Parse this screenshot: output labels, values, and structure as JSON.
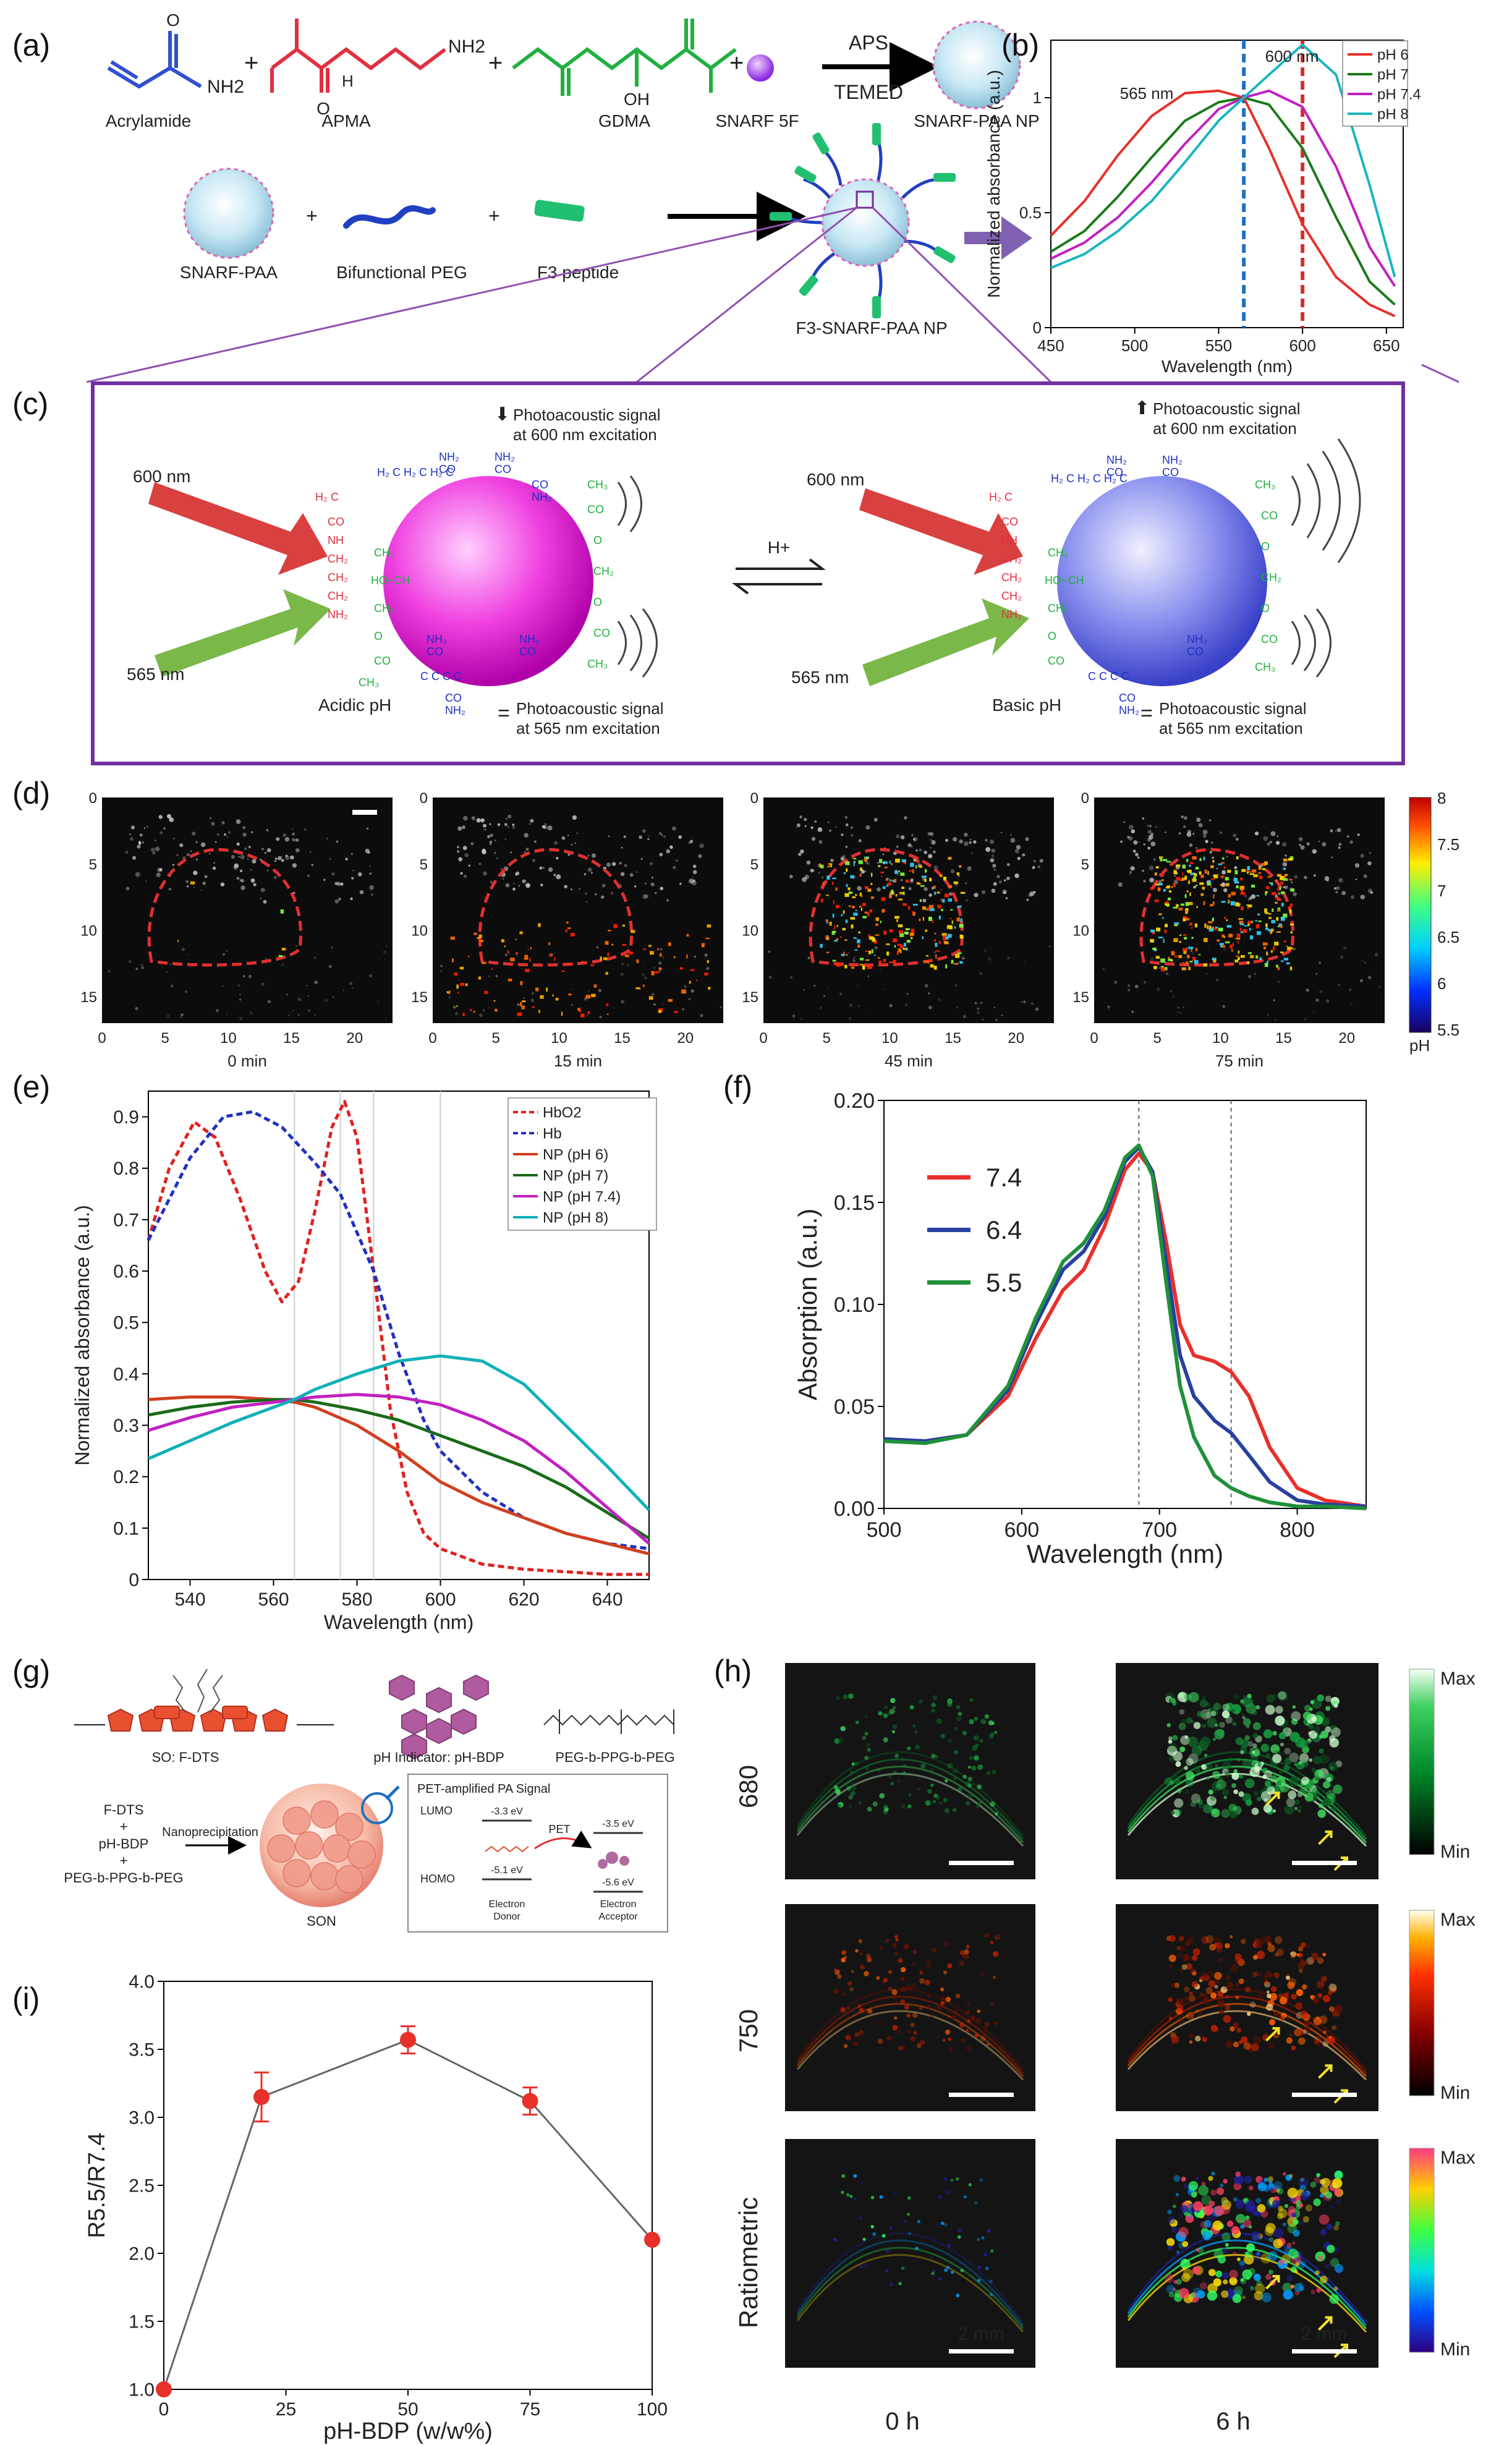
{
  "panels": {
    "a": {
      "label": "(a)",
      "reagents": [
        "Acrylamide",
        "APMA",
        "GDMA",
        "SNARF 5F"
      ],
      "plus": "+",
      "nh2": "NH2",
      "nh": "H",
      "oh": "OH",
      "o": "O",
      "conditions_top": "APS",
      "conditions_bottom": "TEMED",
      "product": "SNARF-PAA NP",
      "row2": [
        "SNARF-PAA",
        "Bifunctional PEG",
        "F3 peptide"
      ],
      "product2": "F3-SNARF-PAA NP"
    },
    "b": {
      "label": "(b)",
      "marker1": "565 nm",
      "marker2": "600 nm"
    },
    "c": {
      "label": "(c)",
      "left_top_arrow": "⬇",
      "left_top_line1": "Photoacoustic signal",
      "left_top_line2": "at 600 nm excitation",
      "left_bottom_eq": "=",
      "left_bottom_line1": "Photoacoustic signal",
      "left_bottom_line2": "at 565 nm excitation",
      "right_top_arrow": "⬆",
      "right_top_line1": "Photoacoustic signal",
      "right_top_line2": "at 600 nm excitation",
      "right_bottom_eq": "=",
      "right_bottom_line1": "Photoacoustic signal",
      "right_bottom_line2": "at 565 nm excitation",
      "laser_red": "600 nm",
      "laser_green": "565 nm",
      "left_state": "Acidic pH",
      "right_state": "Basic pH",
      "equilibrium": "H+"
    },
    "d": {
      "label": "(d)",
      "times": [
        "0 min",
        "15 min",
        "45 min",
        "75 min"
      ],
      "yticks": [
        "0",
        "5",
        "10",
        "15"
      ],
      "xticks": [
        "0",
        "5",
        "10",
        "15",
        "20"
      ],
      "colorbar_ticks": [
        "8",
        "7.5",
        "7",
        "6.5",
        "6",
        "5.5"
      ],
      "colorbar_unit": "pH"
    },
    "e": {
      "label": "(e)",
      "markers": [
        "565 nm",
        "576 nm",
        "584 nm",
        "600 nm"
      ]
    },
    "f": {
      "label": "(f)"
    },
    "g": {
      "label": "(g)",
      "mol1": "SO: F-DTS",
      "mol2": "pH Indicator: pH-BDP",
      "mol3": "PEG-b-PPG-b-PEG",
      "inputs": [
        "F-DTS",
        "+",
        "pH-BDP",
        "+",
        "PEG-b-PPG-b-PEG"
      ],
      "process": "Nanoprecipitation",
      "particle": "SON",
      "box_title": "PET-amplified PA Signal",
      "lumo": "LUMO",
      "homo": "HOMO",
      "lumo_d": "-3.3 eV",
      "homo_d": "-5.1 eV",
      "lumo_a": "-3.5 eV",
      "homo_a": "-5.6 eV",
      "pet": "PET",
      "donor1": "Electron",
      "donor2": "Donor",
      "acceptor1": "Electron",
      "acceptor2": "Acceptor"
    },
    "h": {
      "label": "(h)",
      "rows": [
        "680",
        "750",
        "Ratiometric"
      ],
      "cols": [
        "0 h",
        "6 h"
      ],
      "max": "Max",
      "min": "Min",
      "scalebar": "2 mm"
    },
    "i": {
      "label": "(i)"
    }
  },
  "chart_data": [
    {
      "id": "b",
      "type": "line",
      "xlabel": "Wavelength (nm)",
      "ylabel": "Normalized absorbance (a.u.)",
      "xlim": [
        450,
        660
      ],
      "ylim": [
        0,
        1.25
      ],
      "xticks": [
        450,
        500,
        550,
        600,
        650
      ],
      "yticks": [
        0,
        0.5,
        1
      ],
      "vlines": [
        565,
        600
      ],
      "series": [
        {
          "name": "pH 6",
          "color": "#e8302a",
          "x": [
            450,
            470,
            490,
            510,
            530,
            550,
            565,
            580,
            600,
            620,
            640,
            655
          ],
          "y": [
            0.4,
            0.55,
            0.75,
            0.92,
            1.02,
            1.03,
            1.0,
            0.78,
            0.45,
            0.22,
            0.1,
            0.05
          ]
        },
        {
          "name": "pH 7",
          "color": "#1a7a1a",
          "x": [
            450,
            470,
            490,
            510,
            530,
            550,
            565,
            580,
            600,
            620,
            640,
            655
          ],
          "y": [
            0.33,
            0.42,
            0.57,
            0.74,
            0.9,
            0.98,
            1.0,
            0.97,
            0.78,
            0.48,
            0.2,
            0.1
          ]
        },
        {
          "name": "pH 7.4",
          "color": "#c020c0",
          "x": [
            450,
            470,
            490,
            510,
            530,
            550,
            565,
            580,
            600,
            620,
            640,
            655
          ],
          "y": [
            0.3,
            0.37,
            0.48,
            0.63,
            0.8,
            0.95,
            1.0,
            1.03,
            0.96,
            0.7,
            0.35,
            0.18
          ]
        },
        {
          "name": "pH 8",
          "color": "#19b5c0",
          "x": [
            450,
            470,
            490,
            510,
            530,
            550,
            565,
            580,
            600,
            620,
            640,
            655
          ],
          "y": [
            0.26,
            0.32,
            0.42,
            0.55,
            0.72,
            0.9,
            1.0,
            1.1,
            1.23,
            1.1,
            0.62,
            0.22
          ]
        }
      ]
    },
    {
      "id": "e",
      "type": "line",
      "xlabel": "Wavelength (nm)",
      "ylabel": "Normalized absorbance (a.u.)",
      "xlim": [
        530,
        650
      ],
      "ylim": [
        0,
        0.95
      ],
      "xticks": [
        540,
        560,
        580,
        600,
        620,
        640
      ],
      "yticks": [
        0,
        0.1,
        0.2,
        0.3,
        0.4,
        0.5,
        0.6,
        0.7,
        0.8,
        0.9
      ],
      "vlines": [
        565,
        576,
        584,
        600
      ],
      "series": [
        {
          "name": "HbO2",
          "color": "#e02020",
          "dash": true,
          "x": [
            530,
            535,
            541,
            546,
            552,
            558,
            562,
            566,
            570,
            574,
            577,
            580,
            584,
            588,
            592,
            596,
            600,
            610,
            620,
            630,
            640,
            650
          ],
          "y": [
            0.66,
            0.8,
            0.89,
            0.86,
            0.74,
            0.6,
            0.54,
            0.58,
            0.72,
            0.88,
            0.93,
            0.86,
            0.6,
            0.33,
            0.17,
            0.09,
            0.06,
            0.03,
            0.02,
            0.015,
            0.01,
            0.01
          ]
        },
        {
          "name": "Hb",
          "color": "#2030c0",
          "dash": true,
          "x": [
            530,
            540,
            548,
            555,
            562,
            570,
            576,
            584,
            590,
            596,
            600,
            610,
            620,
            630,
            640,
            650
          ],
          "y": [
            0.66,
            0.82,
            0.9,
            0.91,
            0.88,
            0.81,
            0.75,
            0.6,
            0.44,
            0.31,
            0.25,
            0.17,
            0.12,
            0.09,
            0.07,
            0.06
          ]
        },
        {
          "name": "NP (pH 6)",
          "color": "#d04020",
          "x": [
            530,
            540,
            550,
            560,
            565,
            570,
            580,
            590,
            600,
            610,
            620,
            630,
            640,
            650
          ],
          "y": [
            0.35,
            0.355,
            0.355,
            0.35,
            0.345,
            0.335,
            0.3,
            0.25,
            0.19,
            0.15,
            0.12,
            0.09,
            0.07,
            0.05
          ]
        },
        {
          "name": "NP (pH 7)",
          "color": "#1a6a1a",
          "x": [
            530,
            540,
            550,
            560,
            565,
            570,
            580,
            590,
            600,
            610,
            620,
            630,
            640,
            650
          ],
          "y": [
            0.32,
            0.335,
            0.345,
            0.35,
            0.35,
            0.345,
            0.33,
            0.31,
            0.28,
            0.25,
            0.22,
            0.18,
            0.13,
            0.08
          ]
        },
        {
          "name": "NP (pH 7.4)",
          "color": "#c020c0",
          "x": [
            530,
            540,
            550,
            560,
            565,
            570,
            580,
            590,
            600,
            610,
            620,
            630,
            640,
            650
          ],
          "y": [
            0.29,
            0.315,
            0.335,
            0.345,
            0.35,
            0.355,
            0.36,
            0.355,
            0.34,
            0.31,
            0.27,
            0.21,
            0.14,
            0.07
          ]
        },
        {
          "name": "NP (pH 8)",
          "color": "#10b0b8",
          "x": [
            530,
            540,
            550,
            560,
            565,
            570,
            580,
            590,
            600,
            610,
            620,
            630,
            640,
            650
          ],
          "y": [
            0.235,
            0.27,
            0.305,
            0.335,
            0.35,
            0.37,
            0.4,
            0.425,
            0.435,
            0.425,
            0.38,
            0.3,
            0.22,
            0.135
          ]
        }
      ]
    },
    {
      "id": "f",
      "type": "line",
      "xlabel": "Wavelength (nm)",
      "ylabel": "Absorption (a.u.)",
      "xlim": [
        500,
        850
      ],
      "ylim": [
        0,
        0.2
      ],
      "xticks": [
        500,
        600,
        700,
        800
      ],
      "yticks": [
        0.0,
        0.05,
        0.1,
        0.15,
        0.2
      ],
      "ytick_labels": [
        "0.00",
        "0.05",
        "0.10",
        "0.15",
        "0.20"
      ],
      "vlines": [
        685,
        752
      ],
      "series": [
        {
          "name": "7.4",
          "color": "#e8302a",
          "x": [
            500,
            530,
            560,
            590,
            610,
            630,
            645,
            660,
            675,
            685,
            695,
            705,
            715,
            725,
            740,
            752,
            765,
            780,
            800,
            820,
            850
          ],
          "y": [
            0.034,
            0.033,
            0.036,
            0.055,
            0.083,
            0.107,
            0.117,
            0.138,
            0.166,
            0.174,
            0.165,
            0.13,
            0.09,
            0.075,
            0.072,
            0.067,
            0.055,
            0.03,
            0.01,
            0.004,
            0.001
          ]
        },
        {
          "name": "6.4",
          "color": "#2840a0",
          "x": [
            500,
            530,
            560,
            590,
            610,
            630,
            645,
            660,
            675,
            685,
            695,
            705,
            715,
            725,
            740,
            752,
            765,
            780,
            800,
            820,
            850
          ],
          "y": [
            0.034,
            0.033,
            0.036,
            0.058,
            0.09,
            0.117,
            0.126,
            0.143,
            0.17,
            0.177,
            0.165,
            0.12,
            0.075,
            0.055,
            0.043,
            0.037,
            0.026,
            0.013,
            0.004,
            0.002,
            0.001
          ]
        },
        {
          "name": "5.5",
          "color": "#20903a",
          "x": [
            500,
            530,
            560,
            590,
            610,
            630,
            645,
            660,
            675,
            685,
            695,
            705,
            715,
            725,
            740,
            752,
            765,
            780,
            800,
            820,
            850
          ],
          "y": [
            0.033,
            0.032,
            0.036,
            0.06,
            0.093,
            0.121,
            0.13,
            0.146,
            0.172,
            0.178,
            0.163,
            0.11,
            0.06,
            0.035,
            0.016,
            0.01,
            0.006,
            0.003,
            0.001,
            0.001,
            0.0
          ]
        }
      ]
    },
    {
      "id": "i",
      "type": "scatter",
      "xlabel": "pH-BDP (w/w%)",
      "ylabel": "R5.5/R7.4",
      "xlim": [
        0,
        100
      ],
      "ylim": [
        1.0,
        4.0
      ],
      "xticks": [
        0,
        25,
        50,
        75,
        100
      ],
      "yticks": [
        1.0,
        1.5,
        2.0,
        2.5,
        3.0,
        3.5,
        4.0
      ],
      "ytick_labels": [
        "1.0",
        "1.5",
        "2.0",
        "2.5",
        "3.0",
        "3.5",
        "4.0"
      ],
      "x": [
        0,
        20,
        50,
        75,
        100
      ],
      "y": [
        1.0,
        3.15,
        3.57,
        3.12,
        2.1
      ],
      "err": [
        0.0,
        0.18,
        0.1,
        0.1,
        0.0
      ],
      "color": "#e8302a"
    }
  ]
}
